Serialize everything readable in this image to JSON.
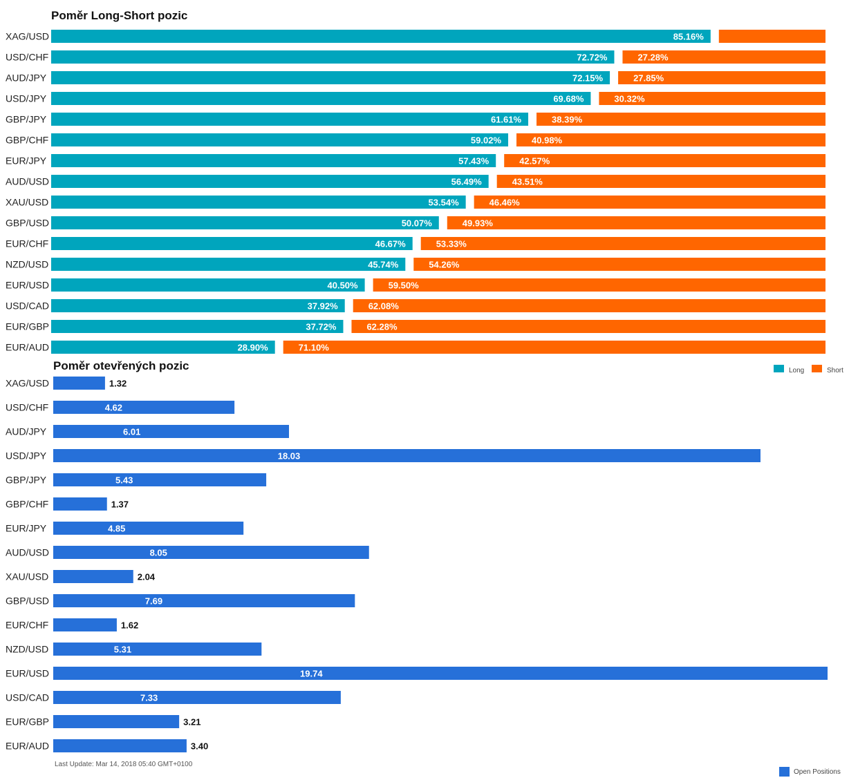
{
  "colors": {
    "long": "#00a5bd",
    "short": "#ff6600",
    "open_positions": "#2670d9"
  },
  "chart_data": [
    {
      "type": "bar",
      "orientation": "horizontal",
      "stacked": true,
      "title": "Poměr Long-Short pozic",
      "categories": [
        "XAG/USD",
        "USD/CHF",
        "AUD/JPY",
        "USD/JPY",
        "GBP/JPY",
        "GBP/CHF",
        "EUR/JPY",
        "AUD/USD",
        "XAU/USD",
        "GBP/USD",
        "EUR/CHF",
        "NZD/USD",
        "EUR/USD",
        "USD/CAD",
        "EUR/GBP",
        "EUR/AUD"
      ],
      "series": [
        {
          "name": "Long",
          "values": [
            85.16,
            72.72,
            72.15,
            69.68,
            61.61,
            59.02,
            57.43,
            56.49,
            53.54,
            50.07,
            46.67,
            45.74,
            40.5,
            37.92,
            37.72,
            28.9
          ],
          "labels": [
            "85.16%",
            "72.72%",
            "72.15%",
            "69.68%",
            "61.61%",
            "59.02%",
            "57.43%",
            "56.49%",
            "53.54%",
            "50.07%",
            "46.67%",
            "45.74%",
            "40.50%",
            "37.92%",
            "37.72%",
            "28.90%"
          ]
        },
        {
          "name": "Short",
          "values": [
            14.84,
            27.28,
            27.85,
            30.32,
            38.39,
            40.98,
            42.57,
            43.51,
            46.46,
            49.93,
            53.33,
            54.26,
            59.5,
            62.08,
            62.28,
            71.1
          ],
          "labels": [
            "",
            "27.28%",
            "27.85%",
            "30.32%",
            "38.39%",
            "40.98%",
            "42.57%",
            "43.51%",
            "46.46%",
            "49.93%",
            "53.33%",
            "54.26%",
            "59.50%",
            "62.08%",
            "62.28%",
            "71.10%"
          ]
        }
      ],
      "legend": "bottom-right"
    },
    {
      "type": "bar",
      "orientation": "horizontal",
      "title": "Poměr otevřených pozic",
      "categories": [
        "XAG/USD",
        "USD/CHF",
        "AUD/JPY",
        "USD/JPY",
        "GBP/JPY",
        "GBP/CHF",
        "EUR/JPY",
        "AUD/USD",
        "XAU/USD",
        "GBP/USD",
        "EUR/CHF",
        "NZD/USD",
        "EUR/USD",
        "USD/CAD",
        "EUR/GBP",
        "EUR/AUD"
      ],
      "series": [
        {
          "name": "Open Positions",
          "values": [
            1.32,
            4.62,
            6.01,
            18.03,
            5.43,
            1.37,
            4.85,
            8.05,
            2.04,
            7.69,
            1.62,
            5.31,
            19.74,
            7.33,
            3.21,
            3.4
          ],
          "labels": [
            "1.32",
            "4.62",
            "6.01",
            "18.03",
            "5.43",
            "1.37",
            "4.85",
            "8.05",
            "2.04",
            "7.69",
            "1.62",
            "5.31",
            "19.74",
            "7.33",
            "3.21",
            "3.40"
          ]
        }
      ],
      "xlim": [
        0,
        19.74
      ],
      "legend": "bottom-right"
    }
  ],
  "footer": "Last Update: Mar 14, 2018 05:40 GMT+0100"
}
